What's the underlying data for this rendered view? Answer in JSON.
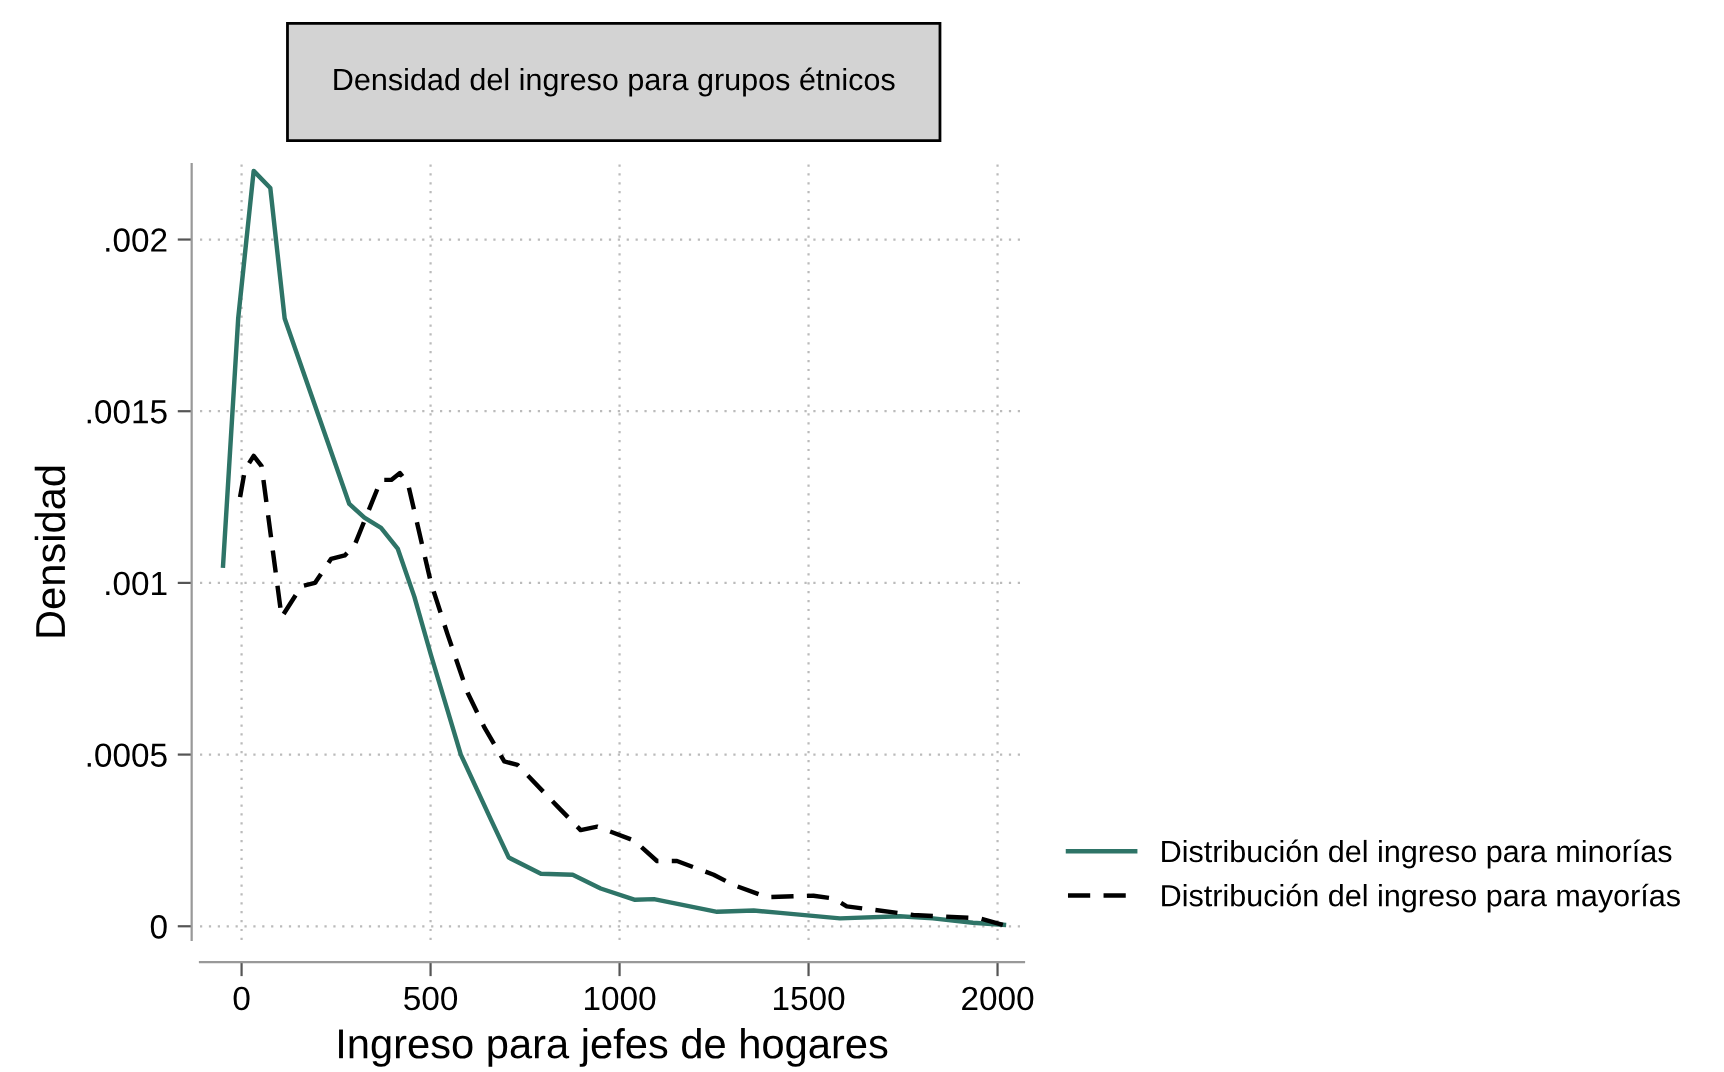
{
  "chart_data": {
    "type": "line",
    "title": "Densidad del ingreso para grupos étnicos",
    "xlabel": "Ingreso para jefes de hogares",
    "ylabel": "Densidad",
    "series": [
      {
        "name": "Distribución del ingreso para minorías",
        "color": "#2e7467",
        "line_style": "solid",
        "x": [
          -49,
          -9,
          32,
          76,
          114,
          285,
          325,
          369,
          413,
          457,
          501,
          580,
          660,
          707,
          792,
          876,
          950,
          1041,
          1091,
          1258,
          1355,
          1425,
          1583,
          1741,
          1829,
          1935,
          2017
        ],
        "values": [
          0.00105,
          0.00177,
          0.0022,
          0.00215,
          0.00177,
          0.00123,
          0.00119,
          0.00116,
          0.0011,
          0.00096,
          0.00079,
          0.0005,
          0.00031,
          0.0002,
          0.000153,
          0.00015,
          0.00011,
          7.7e-05,
          7.9e-05,
          4.2e-05,
          4.6e-05,
          3.9e-05,
          2.3e-05,
          2.9e-05,
          2.3e-05,
          1e-05,
          4e-06
        ]
      },
      {
        "name": "Distribución del ingreso para mayorías",
        "color": "#000000",
        "line_style": "dashed",
        "x": [
          -4,
          9,
          32,
          53,
          106,
          158,
          194,
          237,
          273,
          299,
          369,
          396,
          419,
          440,
          501,
          545,
          598,
          642,
          695,
          730,
          835,
          897,
          941,
          1038,
          1099,
          1152,
          1249,
          1302,
          1390,
          1513,
          1566,
          1601,
          1777,
          1953,
          2014
        ],
        "values": [
          0.00125,
          0.00133,
          0.00137,
          0.00134,
          0.0009,
          0.00099,
          0.001,
          0.00107,
          0.00108,
          0.00111,
          0.0013,
          0.0013,
          0.00132,
          0.00129,
          0.001,
          0.00085,
          0.00068,
          0.00058,
          0.00048,
          0.00047,
          0.00035,
          0.00028,
          0.00029,
          0.00025,
          0.00019,
          0.00019,
          0.00015,
          0.00012,
          8.5e-05,
          8.9e-05,
          8.1e-05,
          5.8e-05,
          3.3e-05,
          2.3e-05,
          4e-06
        ]
      }
    ],
    "xlim": [
      -110,
      2070
    ],
    "ylim": [
      -4e-05,
      0.00222
    ],
    "xticks": [
      0,
      500,
      1000,
      1500,
      2000
    ],
    "yticks": [
      {
        "value": 0,
        "label": "0"
      },
      {
        "value": 0.0005,
        "label": ".0005"
      },
      {
        "value": 0.001,
        "label": ".001"
      },
      {
        "value": 0.0015,
        "label": ".0015"
      },
      {
        "value": 0.002,
        "label": ".002"
      }
    ],
    "grid": true,
    "legend": "bottom right"
  }
}
